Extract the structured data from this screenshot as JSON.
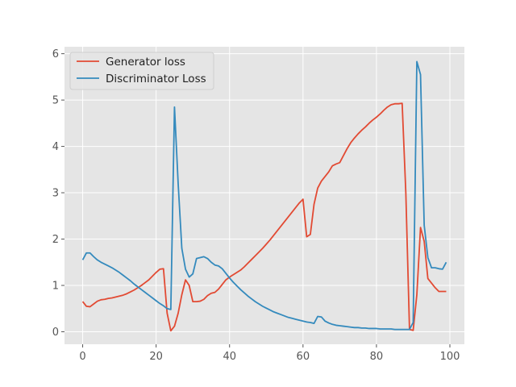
{
  "chart_data": {
    "type": "line",
    "title": "",
    "xlabel": "",
    "ylabel": "",
    "xlim": [
      -4.95,
      103.95
    ],
    "ylim": [
      -0.27,
      6.15
    ],
    "xticks": [
      0,
      20,
      40,
      60,
      80,
      100
    ],
    "yticks": [
      0,
      1,
      2,
      3,
      4,
      5,
      6
    ],
    "grid": true,
    "style": "ggplot",
    "legend": "upper-left",
    "series": [
      {
        "name": "Generator loss",
        "color": "#E24A33",
        "x": [
          0,
          1,
          2,
          3,
          4,
          5,
          6,
          7,
          8,
          9,
          10,
          11,
          12,
          13,
          14,
          15,
          16,
          17,
          18,
          19,
          20,
          21,
          22,
          23,
          24,
          25,
          26,
          27,
          28,
          29,
          30,
          31,
          32,
          33,
          34,
          35,
          36,
          37,
          38,
          39,
          40,
          41,
          42,
          43,
          44,
          45,
          46,
          47,
          48,
          49,
          50,
          51,
          52,
          53,
          54,
          55,
          56,
          57,
          58,
          59,
          60,
          61,
          62,
          63,
          64,
          65,
          66,
          67,
          68,
          69,
          70,
          71,
          72,
          73,
          74,
          75,
          76,
          77,
          78,
          79,
          80,
          81,
          82,
          83,
          84,
          85,
          86,
          87,
          88,
          89,
          90,
          91,
          92,
          93,
          94,
          95,
          96,
          97,
          98,
          99
        ],
        "values": [
          0.65,
          0.55,
          0.54,
          0.6,
          0.66,
          0.69,
          0.7,
          0.72,
          0.73,
          0.75,
          0.77,
          0.79,
          0.82,
          0.86,
          0.9,
          0.95,
          1.0,
          1.06,
          1.12,
          1.2,
          1.28,
          1.35,
          1.36,
          0.4,
          0.02,
          0.12,
          0.4,
          0.8,
          1.12,
          1.0,
          0.65,
          0.65,
          0.66,
          0.7,
          0.78,
          0.83,
          0.85,
          0.92,
          1.02,
          1.12,
          1.18,
          1.23,
          1.28,
          1.33,
          1.4,
          1.48,
          1.56,
          1.64,
          1.72,
          1.8,
          1.89,
          1.98,
          2.08,
          2.18,
          2.28,
          2.38,
          2.48,
          2.58,
          2.68,
          2.78,
          2.86,
          2.05,
          2.1,
          2.75,
          3.1,
          3.25,
          3.35,
          3.45,
          3.58,
          3.62,
          3.65,
          3.8,
          3.95,
          4.08,
          4.18,
          4.27,
          4.35,
          4.42,
          4.5,
          4.57,
          4.63,
          4.7,
          4.78,
          4.85,
          4.9,
          4.92,
          4.92,
          4.93,
          3.0,
          0.05,
          0.03,
          0.8,
          2.25,
          1.95,
          1.15,
          1.05,
          0.95,
          0.87,
          0.87,
          0.87
        ],
        "label_note": ""
      },
      {
        "name": "Discriminator Loss",
        "color": "#348ABD",
        "x": [
          0,
          1,
          2,
          3,
          4,
          5,
          6,
          7,
          8,
          9,
          10,
          11,
          12,
          13,
          14,
          15,
          16,
          17,
          18,
          19,
          20,
          21,
          22,
          23,
          24,
          25,
          26,
          27,
          28,
          29,
          30,
          31,
          32,
          33,
          34,
          35,
          36,
          37,
          38,
          39,
          40,
          41,
          42,
          43,
          44,
          45,
          46,
          47,
          48,
          49,
          50,
          51,
          52,
          53,
          54,
          55,
          56,
          57,
          58,
          59,
          60,
          61,
          62,
          63,
          64,
          65,
          66,
          67,
          68,
          69,
          70,
          71,
          72,
          73,
          74,
          75,
          76,
          77,
          78,
          79,
          80,
          81,
          82,
          83,
          84,
          85,
          86,
          87,
          88,
          89,
          90,
          91,
          92,
          93,
          94,
          95,
          96,
          97,
          98,
          99
        ],
        "values": [
          1.55,
          1.7,
          1.7,
          1.62,
          1.55,
          1.5,
          1.46,
          1.42,
          1.38,
          1.33,
          1.28,
          1.22,
          1.16,
          1.1,
          1.03,
          0.97,
          0.91,
          0.85,
          0.79,
          0.73,
          0.67,
          0.61,
          0.56,
          0.5,
          0.48,
          4.85,
          3.2,
          1.8,
          1.35,
          1.18,
          1.25,
          1.58,
          1.6,
          1.62,
          1.58,
          1.5,
          1.44,
          1.42,
          1.36,
          1.26,
          1.16,
          1.07,
          0.99,
          0.91,
          0.84,
          0.77,
          0.71,
          0.65,
          0.6,
          0.55,
          0.51,
          0.47,
          0.43,
          0.4,
          0.37,
          0.34,
          0.31,
          0.29,
          0.27,
          0.25,
          0.23,
          0.21,
          0.2,
          0.18,
          0.33,
          0.32,
          0.23,
          0.19,
          0.16,
          0.14,
          0.13,
          0.12,
          0.11,
          0.1,
          0.09,
          0.09,
          0.08,
          0.08,
          0.07,
          0.07,
          0.07,
          0.06,
          0.06,
          0.06,
          0.06,
          0.05,
          0.05,
          0.05,
          0.05,
          0.05,
          0.2,
          5.83,
          5.55,
          2.3,
          1.6,
          1.38,
          1.38,
          1.36,
          1.35,
          1.5
        ],
        "label_note": ""
      }
    ]
  }
}
